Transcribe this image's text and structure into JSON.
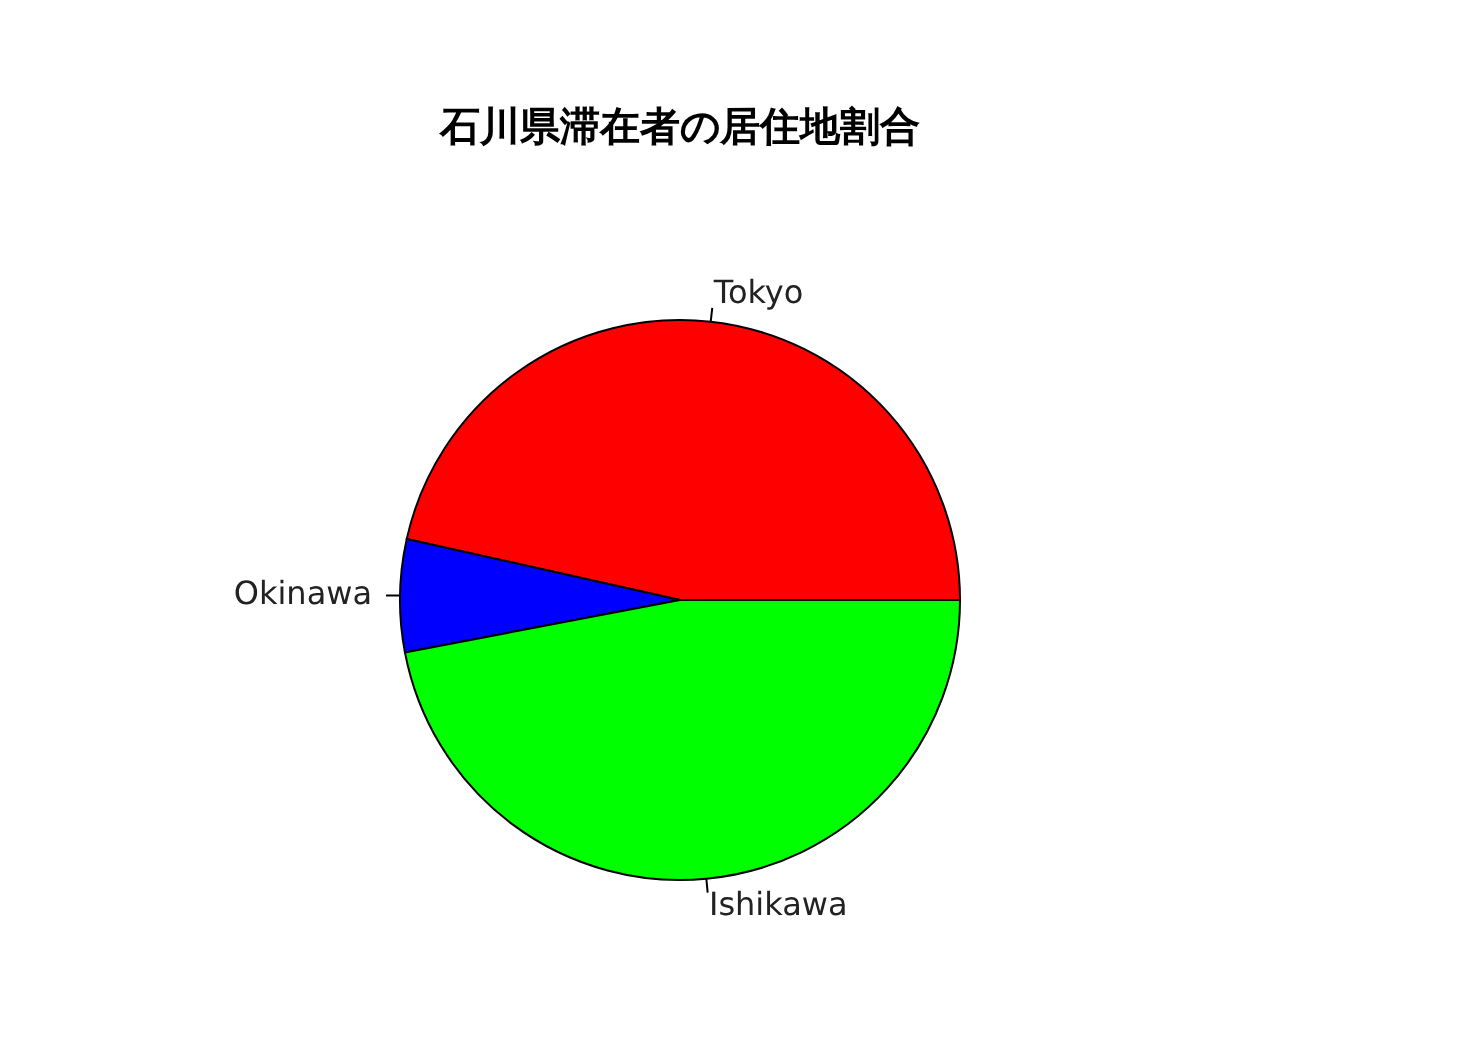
{
  "chart_data": {
    "type": "pie",
    "title": "石川県滞在者の居住地割合",
    "categories": [
      "Tokyo",
      "Okinawa",
      "Ishikawa"
    ],
    "values": [
      46.5,
      6.5,
      47
    ],
    "colors": [
      "#ff0000",
      "#0000ff",
      "#00ff00"
    ]
  }
}
